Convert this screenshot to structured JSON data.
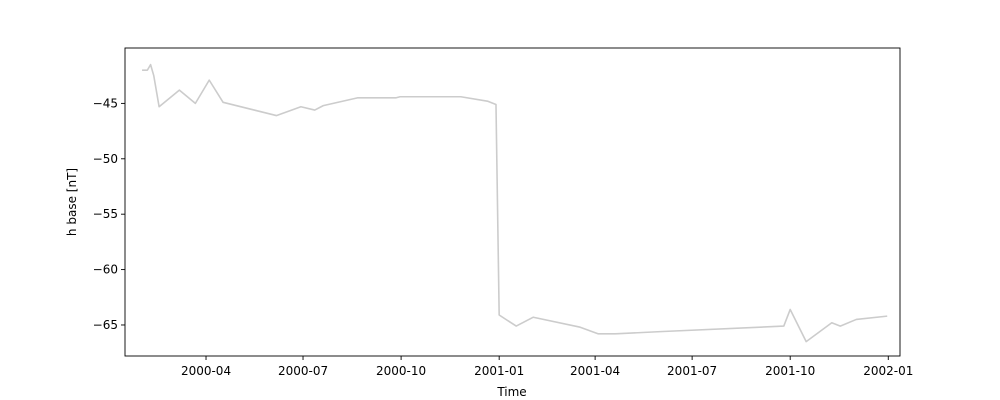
{
  "chart_data": {
    "type": "line",
    "title": "",
    "xlabel": "Time",
    "ylabel": "h base [nT]",
    "x_tick_labels": [
      "2000-04",
      "2000-07",
      "2000-10",
      "2001-01",
      "2001-04",
      "2001-07",
      "2001-10",
      "2002-01"
    ],
    "y_tick_labels": [
      "-45",
      "-50",
      "-55",
      "-60",
      "-65"
    ],
    "y_ticks": [
      -45,
      -50,
      -55,
      -60,
      -65
    ],
    "x_ticks": [
      "2000-04-01",
      "2000-07-01",
      "2000-10-01",
      "2001-01-01",
      "2001-04-01",
      "2001-07-01",
      "2001-10-01",
      "2002-01-01"
    ],
    "xlim": [
      "2000-01-16",
      "2002-01-12"
    ],
    "ylim": [
      -67.8,
      -40.0
    ],
    "grid": false,
    "legend": "none",
    "line_color": "#cccccc",
    "series": [
      {
        "points": [
          [
            "2000-02-01",
            -42.0
          ],
          [
            "2000-02-06",
            -42.0
          ],
          [
            "2000-02-09",
            -41.5
          ],
          [
            "2000-02-12",
            -42.5
          ],
          [
            "2000-02-17",
            -45.3
          ],
          [
            "2000-03-07",
            -43.8
          ],
          [
            "2000-03-22",
            -45.0
          ],
          [
            "2000-04-04",
            -42.9
          ],
          [
            "2000-04-17",
            -44.9
          ],
          [
            "2000-06-06",
            -46.1
          ],
          [
            "2000-06-29",
            -45.3
          ],
          [
            "2000-07-12",
            -45.6
          ],
          [
            "2000-07-20",
            -45.2
          ],
          [
            "2000-08-21",
            -44.5
          ],
          [
            "2000-09-26",
            -44.5
          ],
          [
            "2000-09-30",
            -44.4
          ],
          [
            "2000-11-26",
            -44.4
          ],
          [
            "2000-12-21",
            -44.8
          ],
          [
            "2000-12-29",
            -45.1
          ],
          [
            "2001-01-01",
            -64.1
          ],
          [
            "2001-01-17",
            -65.1
          ],
          [
            "2001-02-02",
            -64.3
          ],
          [
            "2001-03-18",
            -65.2
          ],
          [
            "2001-04-04",
            -65.8
          ],
          [
            "2001-04-20",
            -65.8
          ],
          [
            "2001-06-01",
            -65.6
          ],
          [
            "2001-09-25",
            -65.1
          ],
          [
            "2001-10-01",
            -63.6
          ],
          [
            "2001-10-16",
            -66.5
          ],
          [
            "2001-11-09",
            -64.8
          ],
          [
            "2001-11-17",
            -65.1
          ],
          [
            "2001-12-02",
            -64.5
          ],
          [
            "2001-12-31",
            -64.2
          ]
        ]
      }
    ]
  }
}
